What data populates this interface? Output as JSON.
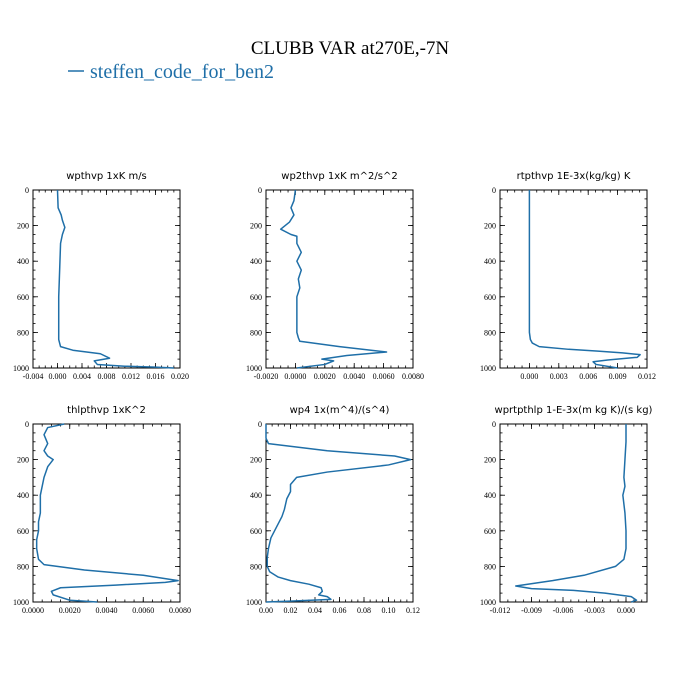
{
  "title": "CLUBB VAR at270E,-7N",
  "legend": {
    "label": "steffen_code_for_ben2",
    "color": "#1f6fa8"
  },
  "chart_data": [
    {
      "type": "line",
      "title": "wpthvp  1xK m/s",
      "xlim": [
        -0.004,
        0.02
      ],
      "xticks": [
        -0.004,
        0.0,
        0.004,
        0.008,
        0.012,
        0.016,
        0.02
      ],
      "xtick_labels": [
        "-0.004",
        "0.000",
        "0.004",
        "0.008",
        "0.012",
        "0.016",
        "0.020"
      ],
      "ylim": [
        0,
        1000
      ],
      "yticks": [
        0,
        200,
        400,
        600,
        800,
        1000
      ],
      "y_inverted": true,
      "series": [
        {
          "x": [
            0.0,
            0.0001,
            0.0006,
            0.0008,
            0.0012,
            0.0008,
            0.0005,
            0.0004,
            0.0003,
            0.0002,
            0.0002,
            0.0005,
            0.0025,
            0.007,
            0.0085,
            0.006,
            0.0065,
            0.011,
            0.016,
            0.019
          ],
          "y": [
            0,
            100,
            140,
            170,
            210,
            250,
            300,
            400,
            500,
            600,
            840,
            880,
            900,
            920,
            945,
            960,
            980,
            990,
            995,
            1000
          ]
        }
      ]
    },
    {
      "type": "line",
      "title": "wp2thvp  1xK m^2/s^2",
      "xlim": [
        -0.002,
        0.008
      ],
      "xticks": [
        -0.002,
        0.0,
        0.002,
        0.004,
        0.006,
        0.008
      ],
      "xtick_labels": [
        "-0.0020",
        "0.0000",
        "0.0020",
        "0.0040",
        "0.0060",
        "0.0080"
      ],
      "ylim": [
        0,
        1000
      ],
      "yticks": [
        0,
        200,
        400,
        600,
        800,
        1000
      ],
      "y_inverted": true,
      "series": [
        {
          "x": [
            0.0,
            -0.0001,
            -0.0003,
            -0.0001,
            -0.0004,
            -0.001,
            -0.0003,
            0.0001,
            0.0001,
            0.0004,
            0.0001,
            0.0004,
            0.0002,
            0.0003,
            0.0001,
            0.0001,
            0.0001,
            0.0002,
            0.0003,
            0.003,
            0.0062,
            0.0035,
            0.0018,
            0.0026,
            0.002,
            0.0001
          ],
          "y": [
            0,
            60,
            100,
            140,
            180,
            220,
            250,
            260,
            300,
            350,
            400,
            450,
            500,
            550,
            600,
            700,
            800,
            830,
            850,
            880,
            910,
            930,
            950,
            960,
            980,
            1000
          ]
        }
      ]
    },
    {
      "type": "line",
      "title": "rtpthvp  1E-3x(kg/kg) K",
      "xlim": [
        -0.003,
        0.012
      ],
      "xticks": [
        0.0,
        0.003,
        0.006,
        0.009,
        0.012
      ],
      "xtick_labels": [
        "0.000",
        "0.003",
        "0.006",
        "0.009",
        "0.012"
      ],
      "ylim": [
        0,
        1000
      ],
      "yticks": [
        0,
        200,
        400,
        600,
        800,
        1000
      ],
      "y_inverted": true,
      "series": [
        {
          "x": [
            0.0,
            0.0,
            0.0,
            0.0,
            0.0,
            0.0001,
            0.0003,
            0.001,
            0.004,
            0.007,
            0.0095,
            0.0113,
            0.011,
            0.008,
            0.0065,
            0.0068,
            0.009
          ],
          "y": [
            0,
            200,
            400,
            600,
            800,
            840,
            860,
            880,
            895,
            905,
            915,
            925,
            940,
            955,
            965,
            980,
            1000
          ]
        }
      ]
    },
    {
      "type": "line",
      "title": "thlpthvp  1xK^2",
      "xlim": [
        0.0,
        0.008
      ],
      "xticks": [
        0.0,
        0.002,
        0.004,
        0.006,
        0.008
      ],
      "xtick_labels": [
        "0.0000",
        "0.0020",
        "0.0040",
        "0.0060",
        "0.0080"
      ],
      "ylim": [
        0,
        1000
      ],
      "yticks": [
        0,
        200,
        400,
        600,
        800,
        1000
      ],
      "y_inverted": true,
      "series": [
        {
          "x": [
            0.0017,
            0.0008,
            0.0006,
            0.0008,
            0.0006,
            0.0008,
            0.0011,
            0.0008,
            0.0006,
            0.0004,
            0.0004,
            0.0003,
            0.0003,
            0.0002,
            0.0002,
            0.0003,
            0.0006,
            0.0028,
            0.006,
            0.0079,
            0.0072,
            0.0045,
            0.0015,
            0.001,
            0.0011,
            0.002,
            0.0035
          ],
          "y": [
            0,
            20,
            60,
            110,
            150,
            180,
            200,
            240,
            300,
            400,
            500,
            550,
            600,
            650,
            700,
            760,
            790,
            820,
            850,
            880,
            890,
            905,
            920,
            940,
            960,
            990,
            1000
          ]
        }
      ]
    },
    {
      "type": "line",
      "title": "wp4  1x(m^4)/(s^4)",
      "xlim": [
        0.0,
        0.12
      ],
      "xticks": [
        0.0,
        0.02,
        0.04,
        0.06,
        0.08,
        0.1,
        0.12
      ],
      "xtick_labels": [
        "0.00",
        "0.02",
        "0.04",
        "0.06",
        "0.08",
        "0.10",
        "0.12"
      ],
      "ylim": [
        0,
        1000
      ],
      "yticks": [
        0,
        200,
        400,
        600,
        800,
        1000
      ],
      "y_inverted": true,
      "series": [
        {
          "x": [
            0.0,
            0.0,
            0.002,
            0.05,
            0.105,
            0.118,
            0.1,
            0.05,
            0.025,
            0.02,
            0.02,
            0.017,
            0.015,
            0.013,
            0.01,
            0.007,
            0.004,
            0.002,
            0.001,
            0.001,
            0.003,
            0.01,
            0.02,
            0.035,
            0.045,
            0.046,
            0.043,
            0.05,
            0.053,
            0.02,
            0.0
          ],
          "y": [
            0,
            80,
            110,
            150,
            180,
            200,
            230,
            270,
            300,
            340,
            380,
            420,
            480,
            520,
            560,
            600,
            640,
            700,
            750,
            800,
            830,
            860,
            880,
            900,
            920,
            940,
            960,
            970,
            985,
            995,
            1000
          ]
        }
      ]
    },
    {
      "type": "line",
      "title": "wprtpthlp  1-E-3x(m kg K)/(s kg)",
      "xlim": [
        -0.012,
        0.002
      ],
      "xticks": [
        -0.012,
        -0.009,
        -0.006,
        -0.003,
        0.0
      ],
      "xtick_labels": [
        "-0.012",
        "-0.009",
        "-0.006",
        "-0.003",
        "0.000"
      ],
      "ylim": [
        0,
        1000
      ],
      "yticks": [
        0,
        200,
        400,
        600,
        800,
        1000
      ],
      "y_inverted": true,
      "series": [
        {
          "x": [
            0.0,
            0.0,
            -0.0001,
            -0.0002,
            -0.0001,
            -0.0003,
            -0.0001,
            0.0,
            0.0,
            -0.0002,
            -0.001,
            -0.004,
            -0.007,
            -0.0105,
            -0.009,
            -0.005,
            -0.002,
            0.0005,
            0.001,
            0.0005
          ],
          "y": [
            0,
            100,
            200,
            300,
            350,
            400,
            500,
            600,
            700,
            760,
            800,
            850,
            880,
            910,
            925,
            935,
            950,
            970,
            990,
            1000
          ]
        }
      ]
    }
  ]
}
